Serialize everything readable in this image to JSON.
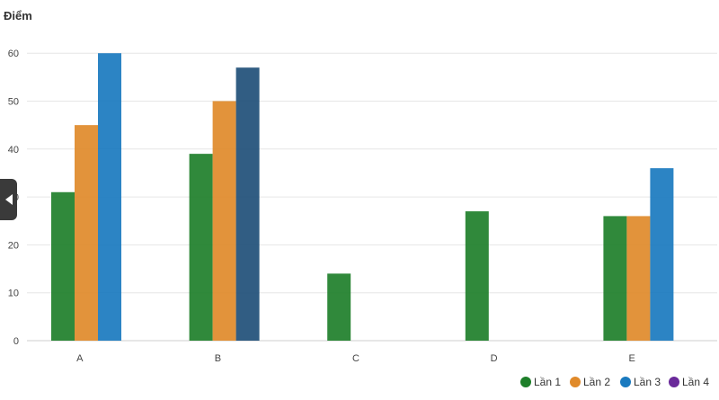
{
  "chart_data": {
    "type": "bar",
    "ylabel": "Điểm",
    "xlabel": "",
    "title": "",
    "categories": [
      "A",
      "B",
      "C",
      "D",
      "E"
    ],
    "ylim": [
      0,
      65
    ],
    "yticks": [
      0,
      10,
      20,
      30,
      40,
      50,
      60
    ],
    "grid": true,
    "legend_position": "bottom-right",
    "series": [
      {
        "name": "Lần 1",
        "color": "#1e7f2a",
        "values": [
          31,
          39,
          14,
          27,
          26
        ]
      },
      {
        "name": "Lần 2",
        "color": "#e08a2a",
        "values": [
          45,
          50,
          null,
          null,
          26
        ]
      },
      {
        "name": "Lần 3",
        "color": "#1a7abf",
        "values": [
          60,
          57,
          null,
          null,
          36
        ]
      },
      {
        "name": "Lần 4",
        "color": "#6a2a9a",
        "values": [
          null,
          null,
          null,
          null,
          null
        ]
      }
    ],
    "highlight": {
      "series": 2,
      "category": 1,
      "color": "#1f4f78"
    }
  },
  "ui": {
    "collapse_icon": "chevron-left-icon"
  }
}
